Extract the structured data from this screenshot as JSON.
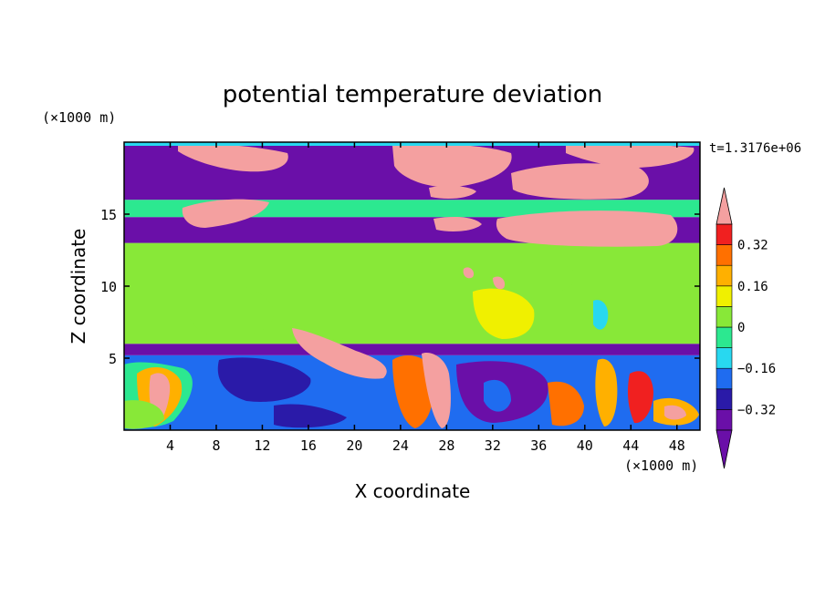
{
  "chart_data": {
    "type": "heatmap",
    "title": "potential temperature deviation",
    "xlabel": "X coordinate",
    "ylabel": "Z coordinate",
    "x_unit": "(×1000 m)",
    "y_unit": "(×1000 m)",
    "time_label": "t=1.3176e+06",
    "xlim": [
      0,
      50
    ],
    "ylim": [
      0,
      20
    ],
    "x_ticks": [
      4,
      8,
      12,
      16,
      20,
      24,
      28,
      32,
      36,
      40,
      44,
      48
    ],
    "y_ticks": [
      5,
      10,
      15
    ],
    "colorbar": {
      "levels": [
        -0.4,
        -0.32,
        -0.24,
        -0.16,
        -0.08,
        0,
        0.08,
        0.16,
        0.24,
        0.32,
        0.4
      ],
      "tick_labels": [
        "0.32",
        "0.16",
        "0",
        "−0.16",
        "−0.32"
      ],
      "tick_values": [
        0.32,
        0.16,
        0,
        -0.16,
        -0.32
      ],
      "colors": [
        "#6a0fa8",
        "#2a1aa8",
        "#1f6cf0",
        "#28d8f0",
        "#2ce890",
        "#88e838",
        "#f0f000",
        "#ffb000",
        "#ff7000",
        "#f02020"
      ],
      "overflow_high_color": "#f4a0a0",
      "underflow_low_color": "#6a0fa8"
    },
    "bands": [
      {
        "z": [
          0,
          5.2
        ],
        "value": -0.2,
        "note_free": true
      },
      {
        "z": [
          5.2,
          6.0
        ],
        "value": -0.36
      },
      {
        "z": [
          6.0,
          13.0
        ],
        "value": 0.04
      },
      {
        "z": [
          13.0,
          14.8
        ],
        "value": -0.36
      },
      {
        "z": [
          14.8,
          16.0
        ],
        "value": -0.04
      },
      {
        "z": [
          16.0,
          20.0
        ],
        "value": -0.38
      }
    ]
  }
}
